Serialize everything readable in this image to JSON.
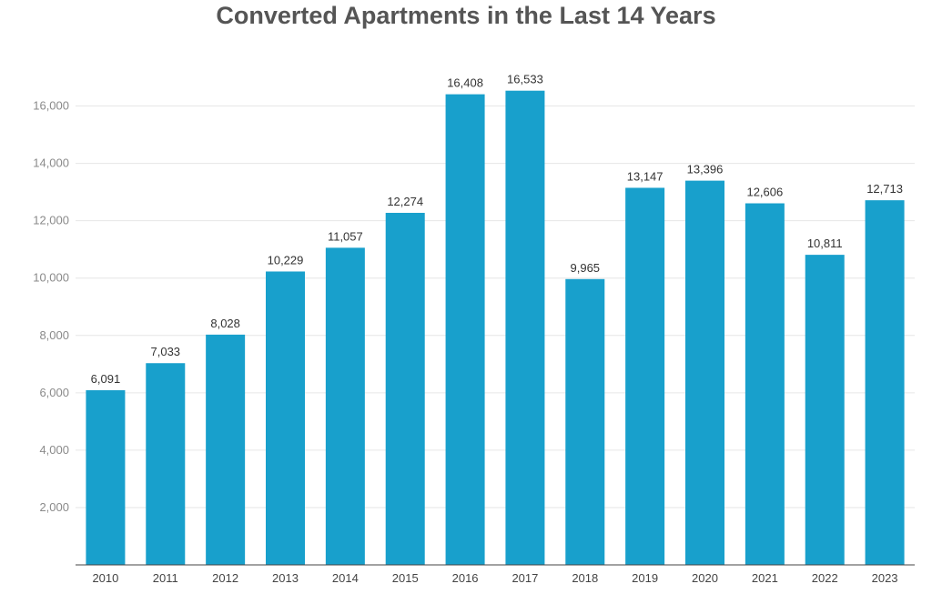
{
  "chart_data": {
    "type": "bar",
    "title": "Converted Apartments in the Last 14 Years",
    "xlabel": "",
    "ylabel": "",
    "categories": [
      "2010",
      "2011",
      "2012",
      "2013",
      "2014",
      "2015",
      "2016",
      "2017",
      "2018",
      "2019",
      "2020",
      "2021",
      "2022",
      "2023"
    ],
    "values": [
      6091,
      7033,
      8028,
      10229,
      11057,
      12274,
      16408,
      16533,
      9965,
      13147,
      13396,
      12606,
      10811,
      12713
    ],
    "value_labels": [
      "6,091",
      "7,033",
      "8,028",
      "10,229",
      "11,057",
      "12,274",
      "16,408",
      "16,533",
      "9,965",
      "13,147",
      "13,396",
      "12,606",
      "10,811",
      "12,713"
    ],
    "ylim": [
      0,
      16000
    ],
    "yticks": [
      2000,
      4000,
      6000,
      8000,
      10000,
      12000,
      14000,
      16000
    ],
    "ytick_labels": [
      "2,000",
      "4,000",
      "6,000",
      "8,000",
      "10,000",
      "12,000",
      "14,000",
      "16,000"
    ],
    "grid": true,
    "bar_color": "#18a0cc"
  }
}
